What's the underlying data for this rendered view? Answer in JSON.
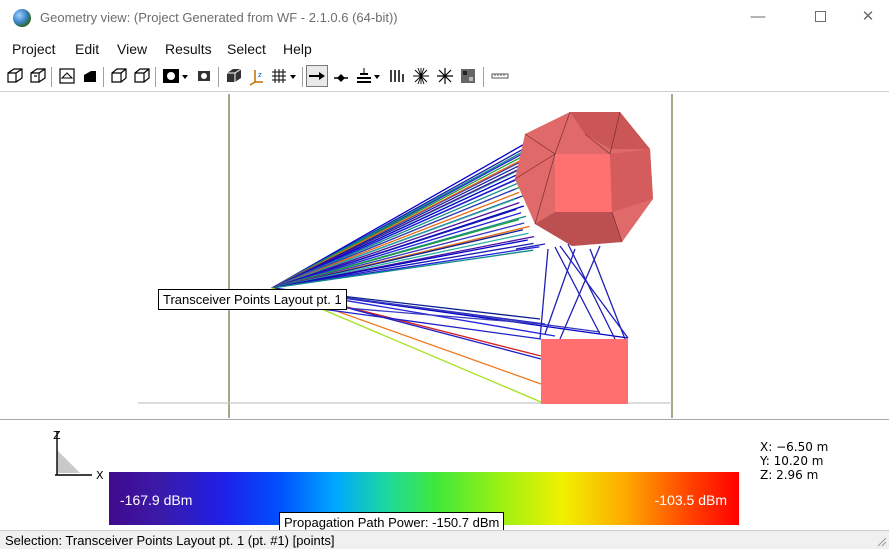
{
  "window": {
    "title": "Geometry view: (Project Generated from WF - 2.1.0.6 (64-bit))",
    "minimize_label": "—",
    "close_label": "✕"
  },
  "menu": {
    "items": [
      {
        "label": "Project"
      },
      {
        "label": "Edit"
      },
      {
        "label": "View"
      },
      {
        "label": "Results"
      },
      {
        "label": "Select"
      },
      {
        "label": "Help"
      }
    ]
  },
  "toolbar": {
    "buttons": [
      {
        "icon": "open-box-icon"
      },
      {
        "icon": "open-box-alt-icon"
      },
      {
        "icon": "perspective-icon"
      },
      {
        "icon": "solid-shading-icon"
      },
      {
        "icon": "wireframe-box-icon"
      },
      {
        "icon": "wireframe-box-alt-icon"
      },
      {
        "icon": "camera-icon"
      },
      {
        "icon": "rotate-view-icon"
      },
      {
        "icon": "solid-cube-icon"
      },
      {
        "icon": "axis-xyz-icon"
      },
      {
        "icon": "grid-icon"
      },
      {
        "icon": "path-arrow-icon"
      },
      {
        "icon": "path-diamond-icon"
      },
      {
        "icon": "antenna-stack-icon"
      },
      {
        "icon": "bars-icon"
      },
      {
        "icon": "burst-icon"
      },
      {
        "icon": "sparkle-icon"
      },
      {
        "icon": "colormap-icon"
      },
      {
        "icon": "ruler-icon"
      }
    ]
  },
  "viewport": {
    "transceiver_label": "Transceiver Points Layout pt. 1",
    "sphere_color": "#e06a6a",
    "box_color": "#ff6f6f"
  },
  "legend": {
    "axis_z": "Z",
    "axis_x": "X",
    "min_label": "-167.9 dBm",
    "max_label": "-103.5 dBm",
    "coord_x": "X: −6.50  m",
    "coord_y": "Y: 10.20  m",
    "coord_z": "Z: 2.96  m",
    "path_power": "Propagation Path Power: -150.7 dBm"
  },
  "status": {
    "text": "Selection: Transceiver Points Layout pt. 1 (pt. #1) [points]"
  }
}
